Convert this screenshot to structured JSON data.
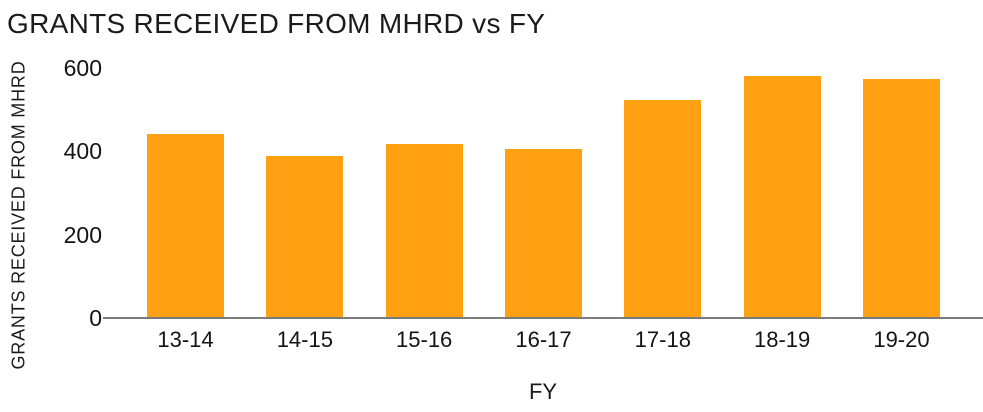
{
  "chart_data": {
    "type": "bar",
    "title": "GRANTS RECEIVED FROM MHRD vs FY",
    "xlabel": "FY",
    "ylabel": "GRANTS RECEIVED FROM MHRD",
    "categories": [
      "13-14",
      "14-15",
      "15-16",
      "16-17",
      "17-18",
      "18-19",
      "19-20"
    ],
    "values": [
      441,
      389,
      417,
      405,
      522,
      581,
      574
    ],
    "ylim": [
      0,
      600
    ],
    "yticks": [
      0,
      200,
      400,
      600
    ],
    "grid": false,
    "legend": false,
    "colors": {
      "bar": "#FFA113",
      "axis_line": "#7A7A7A",
      "text": "#1B1B1B"
    }
  }
}
